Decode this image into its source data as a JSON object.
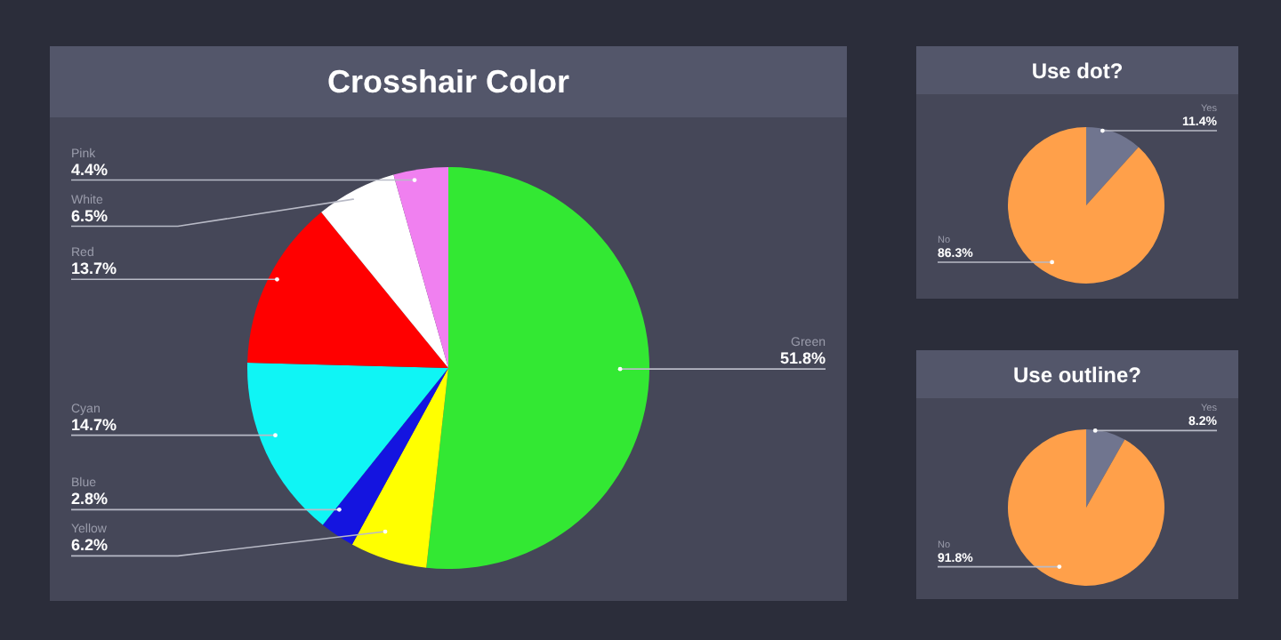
{
  "chart_data": [
    {
      "type": "pie",
      "title": "Crosshair Color",
      "categories": [
        "Green",
        "Yellow",
        "Blue",
        "Cyan",
        "Red",
        "White",
        "Pink"
      ],
      "values": [
        51.8,
        6.2,
        2.8,
        14.7,
        13.7,
        6.5,
        4.4
      ],
      "colors": [
        "#33e833",
        "#ffff00",
        "#1414e0",
        "#0ff5f5",
        "#ff0000",
        "#ffffff",
        "#f080f0"
      ],
      "value_labels": [
        "51.8%",
        "6.2%",
        "2.8%",
        "14.7%",
        "13.7%",
        "6.5%",
        "4.4%"
      ],
      "legend": false
    },
    {
      "type": "pie",
      "title": "Use dot?",
      "categories": [
        "Yes",
        "No"
      ],
      "values": [
        11.4,
        86.3
      ],
      "colors": [
        "#70758f",
        "#ffa04a"
      ],
      "value_labels": [
        "11.4%",
        "86.3%"
      ],
      "legend": false
    },
    {
      "type": "pie",
      "title": "Use outline?",
      "categories": [
        "Yes",
        "No"
      ],
      "values": [
        8.2,
        91.8
      ],
      "colors": [
        "#70758f",
        "#ffa04a"
      ],
      "value_labels": [
        "8.2%",
        "91.8%"
      ],
      "legend": false
    }
  ]
}
